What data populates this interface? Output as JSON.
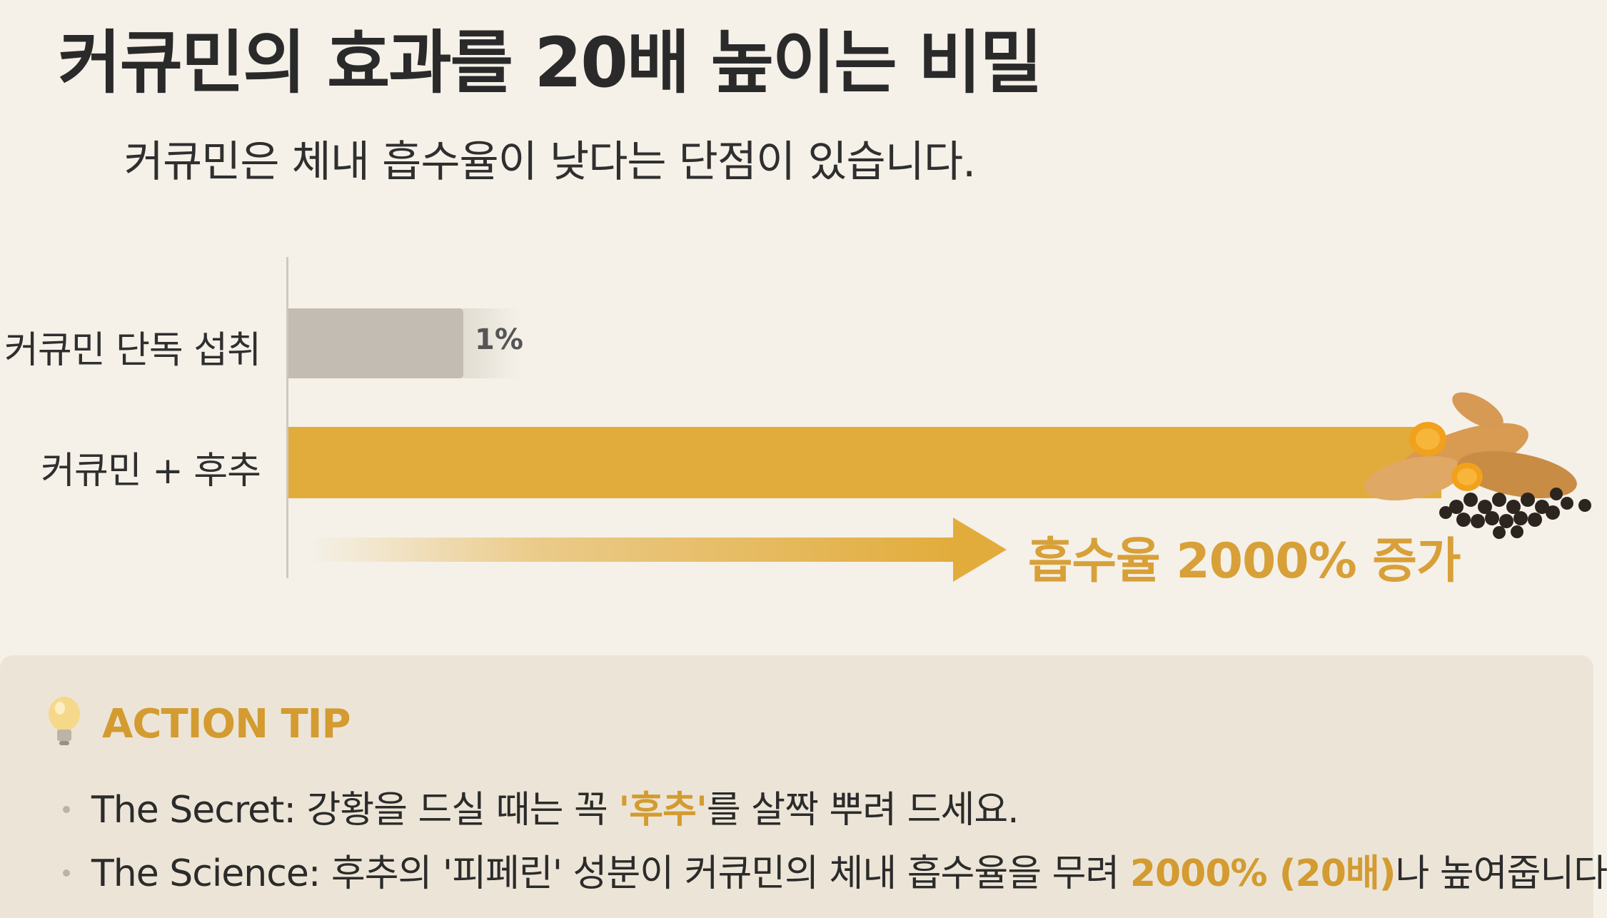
{
  "header": {
    "title": "커큐민의 효과를 20배 높이는 비밀",
    "subtitle": "커큐민은 체내 흡수율이 낮다는 단점이 있습니다."
  },
  "chart_data": {
    "type": "bar",
    "orientation": "horizontal",
    "categories": [
      "커큐민 단독 섭취",
      "커큐민 + 후추"
    ],
    "values": [
      1,
      20
    ],
    "data_labels": [
      "1%",
      ""
    ],
    "colors": [
      "#c2bcb2",
      "#e2ac3c"
    ],
    "xlim": [
      0,
      20
    ],
    "grid": false,
    "annotation": "흡수율 2000% 증가"
  },
  "action_tip": {
    "heading": "ACTION TIP",
    "icon": "lightbulb-icon",
    "items": [
      {
        "prefix": "The Secret: 강황을 드실 때는 꼭 ",
        "highlight": "'후추'",
        "suffix": "를 살짝 뿌려 드세요."
      },
      {
        "prefix": "The Science: 후추의 '피페린' 성분이 커큐민의 체내 흡수율을 무려 ",
        "highlight": "2000% (20배)",
        "suffix": "나 높여줍니다."
      }
    ]
  },
  "colors": {
    "accent": "#d39b30",
    "bar_gold": "#e2ac3c",
    "bar_gray": "#c2bcb2",
    "background": "#f5f1e9"
  }
}
